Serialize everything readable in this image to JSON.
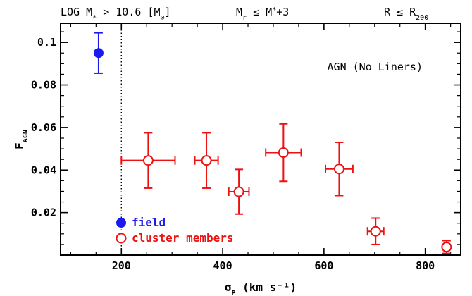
{
  "header": {
    "left": "LOG M* > 10.6 [M⊙]",
    "middle": "Mr ≤ M*+3",
    "right": "R ≤ R200"
  },
  "chart_data": {
    "type": "scatter",
    "title": "",
    "annotation": "AGN (No Liners)",
    "xlabel": "σP (km s⁻¹)",
    "ylabel": "FAGN",
    "xlim": [
      80,
      870
    ],
    "ylim": [
      0,
      0.109
    ],
    "x_ticks": [
      200,
      400,
      600,
      800
    ],
    "y_ticks": [
      0.02,
      0.04,
      0.06,
      0.08,
      0.1
    ],
    "x_tick_labels": [
      "200",
      "400",
      "600",
      "800"
    ],
    "y_tick_labels": [
      "0.02",
      "0.04",
      "0.06",
      "0.08",
      "0.1"
    ],
    "reference_line": {
      "x": 200,
      "style": "dotted"
    },
    "legend_position": "bottom-left",
    "series": [
      {
        "name": "field",
        "color": "#1a1aee",
        "marker": "filled-circle",
        "points": [
          {
            "x": 155,
            "y": 0.095,
            "y_err_low": 0.0095,
            "y_err_high": 0.0095
          }
        ]
      },
      {
        "name": "cluster members",
        "color": "#ee1111",
        "marker": "open-circle",
        "points": [
          {
            "x": 253,
            "y": 0.0445,
            "x_err_low": 53,
            "x_err_high": 53,
            "y_err_low": 0.013,
            "y_err_high": 0.013
          },
          {
            "x": 368,
            "y": 0.0445,
            "x_err_low": 23,
            "x_err_high": 23,
            "y_err_low": 0.013,
            "y_err_high": 0.013
          },
          {
            "x": 432,
            "y": 0.0298,
            "x_err_low": 20,
            "x_err_high": 20,
            "y_err_low": 0.0105,
            "y_err_high": 0.0105
          },
          {
            "x": 520,
            "y": 0.0482,
            "x_err_low": 35,
            "x_err_high": 35,
            "y_err_low": 0.0135,
            "y_err_high": 0.0135
          },
          {
            "x": 630,
            "y": 0.0405,
            "x_err_low": 27,
            "x_err_high": 27,
            "y_err_low": 0.0125,
            "y_err_high": 0.0125
          },
          {
            "x": 702,
            "y": 0.0112,
            "x_err_low": 16,
            "x_err_high": 16,
            "y_err_low": 0.0062,
            "y_err_high": 0.0062
          },
          {
            "x": 842,
            "y": 0.0038,
            "x_err_low": 0,
            "x_err_high": 0,
            "y_err_low": 0.003,
            "y_err_high": 0.003
          }
        ]
      }
    ]
  }
}
